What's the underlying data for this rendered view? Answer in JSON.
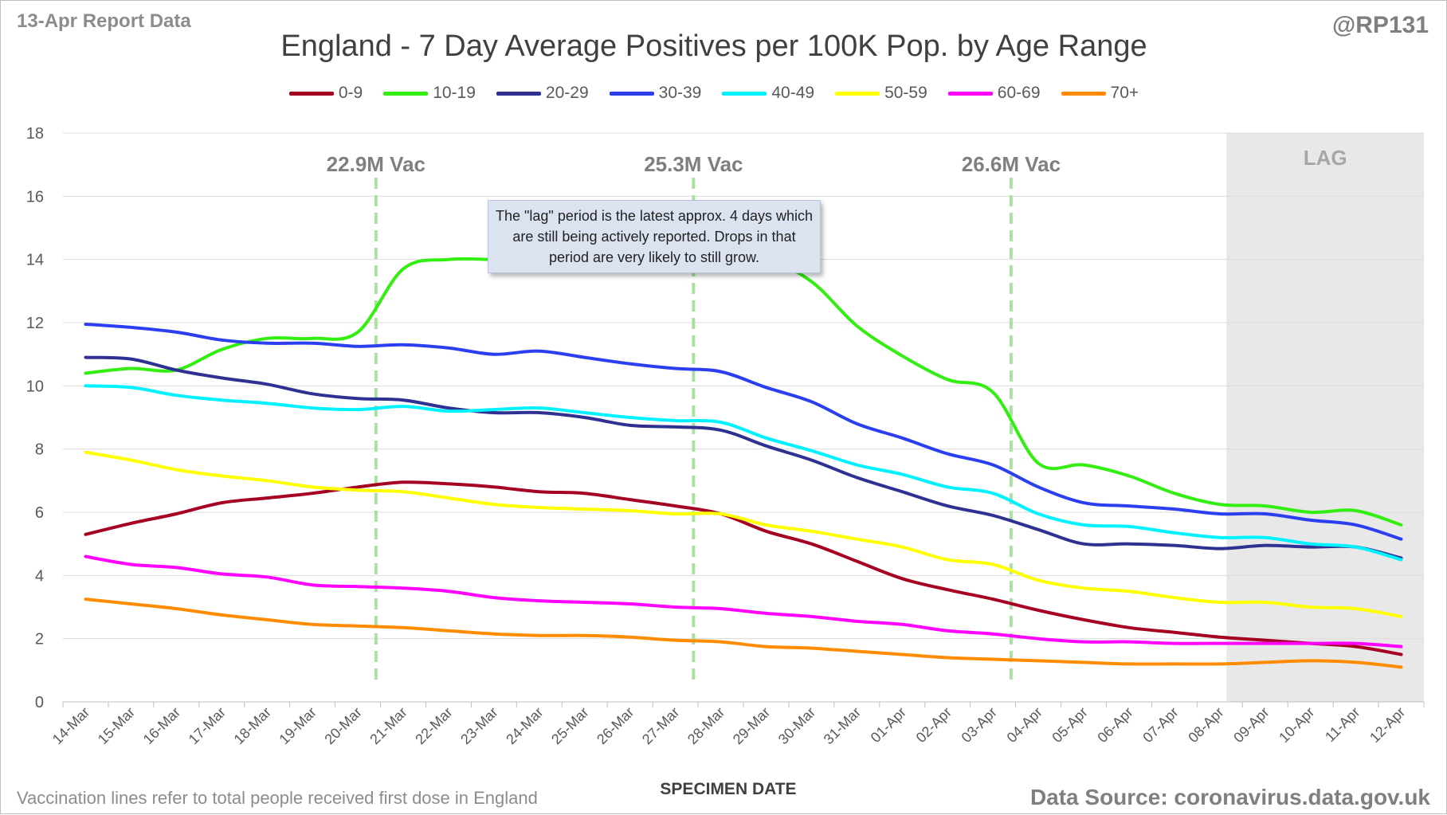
{
  "header": {
    "report_label": "13-Apr Report Data",
    "handle": "@RP131",
    "title": "England - 7 Day Average Positives per 100K Pop. by Age Range"
  },
  "footer": {
    "note": "Vaccination lines refer to total people received first dose in England",
    "xaxis_title": "SPECIMEN DATE",
    "source": "Data Source: coronavirus.data.gov.uk"
  },
  "annotation": {
    "text": "The \"lag\" period is the latest approx. 4 days which are still being actively reported.  Drops in that period are very likely to still grow."
  },
  "chart_data": {
    "type": "line",
    "title": "England - 7 Day Average Positives per 100K Pop. by Age Range",
    "xlabel": "SPECIMEN DATE",
    "ylabel": "",
    "ylim": [
      0,
      18
    ],
    "yticks": [
      0,
      2,
      4,
      6,
      8,
      10,
      12,
      14,
      16,
      18
    ],
    "grid": true,
    "legend_position": "top",
    "categories": [
      "14-Mar",
      "15-Mar",
      "16-Mar",
      "17-Mar",
      "18-Mar",
      "19-Mar",
      "20-Mar",
      "21-Mar",
      "22-Mar",
      "23-Mar",
      "24-Mar",
      "25-Mar",
      "26-Mar",
      "27-Mar",
      "28-Mar",
      "29-Mar",
      "30-Mar",
      "31-Mar",
      "01-Apr",
      "02-Apr",
      "03-Apr",
      "04-Apr",
      "05-Apr",
      "06-Apr",
      "07-Apr",
      "08-Apr",
      "09-Apr",
      "10-Apr",
      "11-Apr",
      "12-Apr"
    ],
    "series": [
      {
        "name": "0-9",
        "color": "#a50021",
        "values": [
          5.3,
          5.65,
          5.95,
          6.3,
          6.45,
          6.6,
          6.8,
          6.95,
          6.9,
          6.8,
          6.65,
          6.6,
          6.4,
          6.2,
          5.95,
          5.4,
          5.0,
          4.45,
          3.9,
          3.55,
          3.25,
          2.9,
          2.6,
          2.35,
          2.2,
          2.05,
          1.95,
          1.85,
          1.75,
          1.5
        ]
      },
      {
        "name": "10-19",
        "color": "#33ee11",
        "values": [
          10.4,
          10.55,
          10.5,
          11.15,
          11.5,
          11.5,
          11.7,
          13.7,
          14.0,
          14.0,
          14.0,
          14.0,
          14.0,
          14.0,
          14.0,
          14.0,
          13.3,
          11.9,
          10.95,
          10.2,
          9.8,
          7.55,
          7.5,
          7.15,
          6.6,
          6.25,
          6.2,
          6.0,
          6.05,
          5.6
        ]
      },
      {
        "name": "20-29",
        "color": "#2e3192",
        "values": [
          10.9,
          10.85,
          10.5,
          10.25,
          10.05,
          9.75,
          9.6,
          9.55,
          9.3,
          9.15,
          9.15,
          9.0,
          8.75,
          8.7,
          8.6,
          8.1,
          7.65,
          7.1,
          6.65,
          6.2,
          5.9,
          5.45,
          5.0,
          5.0,
          4.95,
          4.85,
          4.95,
          4.9,
          4.9,
          4.55
        ]
      },
      {
        "name": "30-39",
        "color": "#2b3ff0",
        "values": [
          11.95,
          11.85,
          11.7,
          11.45,
          11.35,
          11.35,
          11.25,
          11.3,
          11.2,
          11.0,
          11.1,
          10.9,
          10.7,
          10.55,
          10.45,
          9.95,
          9.5,
          8.8,
          8.35,
          7.85,
          7.5,
          6.8,
          6.3,
          6.2,
          6.1,
          5.95,
          5.95,
          5.75,
          5.6,
          5.15
        ]
      },
      {
        "name": "40-49",
        "color": "#00f2ff",
        "values": [
          10.0,
          9.95,
          9.7,
          9.55,
          9.45,
          9.3,
          9.25,
          9.35,
          9.2,
          9.25,
          9.3,
          9.15,
          9.0,
          8.9,
          8.85,
          8.35,
          7.95,
          7.5,
          7.2,
          6.8,
          6.6,
          5.95,
          5.6,
          5.55,
          5.35,
          5.2,
          5.2,
          5.0,
          4.9,
          4.5
        ]
      },
      {
        "name": "50-59",
        "color": "#ffff00",
        "values": [
          7.9,
          7.65,
          7.35,
          7.15,
          7.0,
          6.8,
          6.7,
          6.65,
          6.45,
          6.25,
          6.15,
          6.1,
          6.05,
          5.95,
          5.95,
          5.6,
          5.4,
          5.15,
          4.9,
          4.5,
          4.35,
          3.85,
          3.6,
          3.5,
          3.3,
          3.15,
          3.15,
          3.0,
          2.95,
          2.7
        ]
      },
      {
        "name": "60-69",
        "color": "#ff00ff",
        "values": [
          4.6,
          4.35,
          4.25,
          4.05,
          3.95,
          3.7,
          3.65,
          3.6,
          3.5,
          3.3,
          3.2,
          3.15,
          3.1,
          3.0,
          2.95,
          2.8,
          2.7,
          2.55,
          2.45,
          2.25,
          2.15,
          2.0,
          1.9,
          1.9,
          1.85,
          1.85,
          1.85,
          1.85,
          1.85,
          1.75
        ]
      },
      {
        "name": "70+",
        "color": "#ff8c00",
        "values": [
          3.25,
          3.1,
          2.95,
          2.75,
          2.6,
          2.45,
          2.4,
          2.35,
          2.25,
          2.15,
          2.1,
          2.1,
          2.05,
          1.95,
          1.9,
          1.75,
          1.7,
          1.6,
          1.5,
          1.4,
          1.35,
          1.3,
          1.25,
          1.2,
          1.2,
          1.2,
          1.25,
          1.3,
          1.25,
          1.1
        ]
      }
    ],
    "vaccination_markers": [
      {
        "label": "22.9M Vac",
        "x": 6.4
      },
      {
        "label": "25.3M Vac",
        "x": 13.4
      },
      {
        "label": "26.6M Vac",
        "x": 20.4
      }
    ],
    "lag_region": {
      "label": "LAG",
      "from_index": 25.65,
      "to_index": 29.5
    }
  }
}
